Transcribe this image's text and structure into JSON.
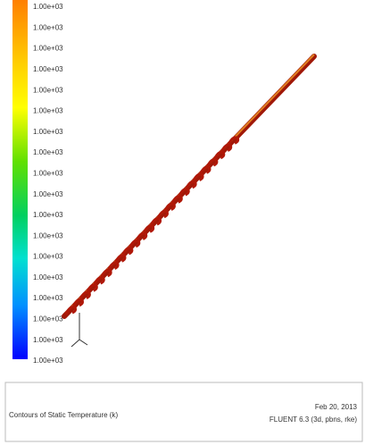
{
  "colorbar": {
    "labels": [
      "1.00e+03",
      "1.00e+03",
      "1.00e+03",
      "1.00e+03",
      "1.00e+03",
      "1.00e+03",
      "1.00e+03",
      "1.00e+03",
      "1.00e+03",
      "1.00e+03",
      "1.00e+03",
      "1.00e+03",
      "1.00e+03",
      "1.00e+03",
      "1.00e+03",
      "1.00e+03",
      "1.00e+03",
      "1.00e+03"
    ]
  },
  "footer": {
    "title": "Contours of Static Temperature (k)",
    "date": "Feb 20, 2013",
    "solver": "FLUENT 6.3 (3d, pbns, rke)"
  }
}
